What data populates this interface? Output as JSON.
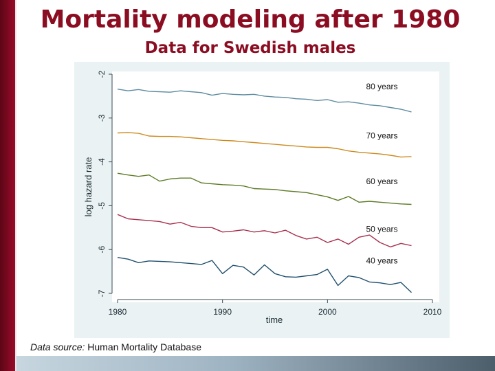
{
  "slide": {
    "title": "Mortality modeling after 1980",
    "subtitle": "Data for Swedish males",
    "caption_label": "Data source:",
    "caption_text": " Human Mortality Database"
  },
  "chart_data": {
    "type": "line",
    "title": "",
    "xlabel": "time",
    "ylabel": "log hazard rate",
    "xlim": [
      1980,
      2010
    ],
    "ylim": [
      -7,
      -2
    ],
    "xticks": [
      1980,
      1990,
      2000,
      2010
    ],
    "yticks": [
      -7,
      -6,
      -5,
      -4,
      -3,
      -2
    ],
    "grid": false,
    "series": [
      {
        "name": "80 years",
        "label": "80 years",
        "color": "#5d8ba0",
        "x": [
          1980,
          1981,
          1982,
          1983,
          1984,
          1985,
          1986,
          1987,
          1988,
          1989,
          1990,
          1991,
          1992,
          1993,
          1994,
          1995,
          1996,
          1997,
          1998,
          1999,
          2000,
          2001,
          2002,
          2003,
          2004,
          2005,
          2006,
          2007,
          2008
        ],
        "values": [
          -2.34,
          -2.38,
          -2.35,
          -2.39,
          -2.4,
          -2.41,
          -2.38,
          -2.4,
          -2.42,
          -2.48,
          -2.44,
          -2.46,
          -2.47,
          -2.46,
          -2.5,
          -2.52,
          -2.53,
          -2.56,
          -2.57,
          -2.6,
          -2.58,
          -2.64,
          -2.63,
          -2.66,
          -2.7,
          -2.72,
          -2.76,
          -2.8,
          -2.86
        ]
      },
      {
        "name": "70 years",
        "label": "70 years",
        "color": "#cc8a1d",
        "x": [
          1980,
          1981,
          1982,
          1983,
          1984,
          1985,
          1986,
          1987,
          1988,
          1989,
          1990,
          1991,
          1992,
          1993,
          1994,
          1995,
          1996,
          1997,
          1998,
          1999,
          2000,
          2001,
          2002,
          2003,
          2004,
          2005,
          2006,
          2007,
          2008
        ],
        "values": [
          -3.34,
          -3.33,
          -3.35,
          -3.41,
          -3.42,
          -3.42,
          -3.43,
          -3.45,
          -3.47,
          -3.49,
          -3.51,
          -3.52,
          -3.54,
          -3.56,
          -3.58,
          -3.6,
          -3.62,
          -3.64,
          -3.66,
          -3.67,
          -3.67,
          -3.7,
          -3.75,
          -3.78,
          -3.8,
          -3.82,
          -3.85,
          -3.89,
          -3.88
        ]
      },
      {
        "name": "60 years",
        "label": "60 years",
        "color": "#5b7a25",
        "x": [
          1980,
          1981,
          1982,
          1983,
          1984,
          1985,
          1986,
          1987,
          1988,
          1989,
          1990,
          1991,
          1992,
          1993,
          1994,
          1995,
          1996,
          1997,
          1998,
          1999,
          2000,
          2001,
          2002,
          2003,
          2004,
          2005,
          2006,
          2007,
          2008
        ],
        "values": [
          -4.26,
          -4.3,
          -4.33,
          -4.3,
          -4.44,
          -4.39,
          -4.37,
          -4.37,
          -4.48,
          -4.5,
          -4.52,
          -4.53,
          -4.55,
          -4.61,
          -4.62,
          -4.63,
          -4.66,
          -4.68,
          -4.7,
          -4.75,
          -4.8,
          -4.88,
          -4.79,
          -4.92,
          -4.9,
          -4.92,
          -4.94,
          -4.96,
          -4.97
        ]
      },
      {
        "name": "50 years",
        "label": "50 years",
        "color": "#a8304e",
        "x": [
          1980,
          1981,
          1982,
          1983,
          1984,
          1985,
          1986,
          1987,
          1988,
          1989,
          1990,
          1991,
          1992,
          1993,
          1994,
          1995,
          1996,
          1997,
          1998,
          1999,
          2000,
          2001,
          2002,
          2003,
          2004,
          2005,
          2006,
          2007,
          2008
        ],
        "values": [
          -5.2,
          -5.3,
          -5.32,
          -5.34,
          -5.36,
          -5.42,
          -5.38,
          -5.47,
          -5.5,
          -5.5,
          -5.6,
          -5.58,
          -5.55,
          -5.6,
          -5.57,
          -5.62,
          -5.56,
          -5.68,
          -5.76,
          -5.72,
          -5.84,
          -5.76,
          -5.88,
          -5.72,
          -5.67,
          -5.84,
          -5.94,
          -5.86,
          -5.91
        ]
      },
      {
        "name": "40 years",
        "label": "40 years",
        "color": "#1f4f6e",
        "x": [
          1980,
          1981,
          1982,
          1983,
          1984,
          1985,
          1986,
          1987,
          1988,
          1989,
          1990,
          1991,
          1992,
          1993,
          1994,
          1995,
          1996,
          1997,
          1998,
          1999,
          2000,
          2001,
          2002,
          2003,
          2004,
          2005,
          2006,
          2007,
          2008
        ],
        "values": [
          -6.18,
          -6.22,
          -6.3,
          -6.26,
          -6.27,
          -6.28,
          -6.3,
          -6.32,
          -6.34,
          -6.25,
          -6.55,
          -6.36,
          -6.4,
          -6.58,
          -6.35,
          -6.55,
          -6.62,
          -6.63,
          -6.6,
          -6.57,
          -6.45,
          -6.82,
          -6.6,
          -6.64,
          -6.74,
          -6.76,
          -6.8,
          -6.75,
          -6.98
        ]
      }
    ]
  }
}
